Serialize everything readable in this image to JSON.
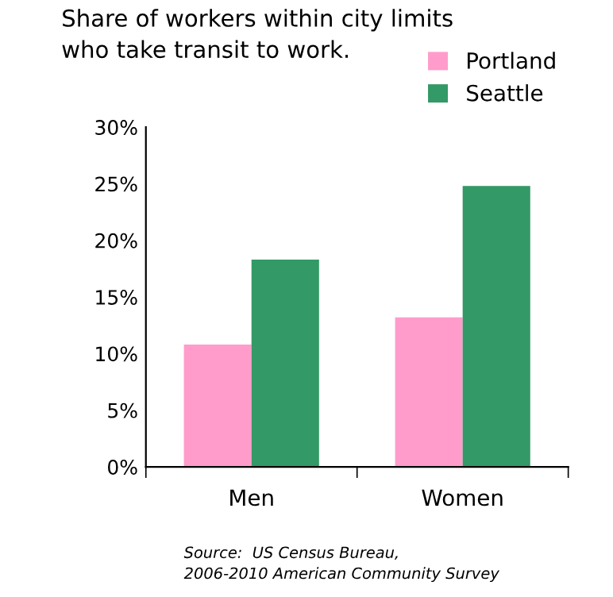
{
  "chart_data": {
    "type": "bar",
    "title": "Share of workers within city limits\nwho take transit to work.",
    "categories": [
      "Men",
      "Women"
    ],
    "series": [
      {
        "name": "Portland",
        "color": "#ff9ccc",
        "values": [
          10.8,
          13.2
        ]
      },
      {
        "name": "Seattle",
        "color": "#339966",
        "values": [
          18.3,
          24.8
        ]
      }
    ],
    "ylim": [
      0,
      30
    ],
    "yticks": [
      {
        "value": 0,
        "label": "0%"
      },
      {
        "value": 5,
        "label": "5%"
      },
      {
        "value": 10,
        "label": "10%"
      },
      {
        "value": 15,
        "label": "15%"
      },
      {
        "value": 20,
        "label": "20%"
      },
      {
        "value": 25,
        "label": "25%"
      },
      {
        "value": 30,
        "label": "30%"
      }
    ],
    "grid": false,
    "legend": "top right",
    "annotations": [
      "Source:  US Census Bureau,\n2006-2010 American Community Survey"
    ]
  }
}
